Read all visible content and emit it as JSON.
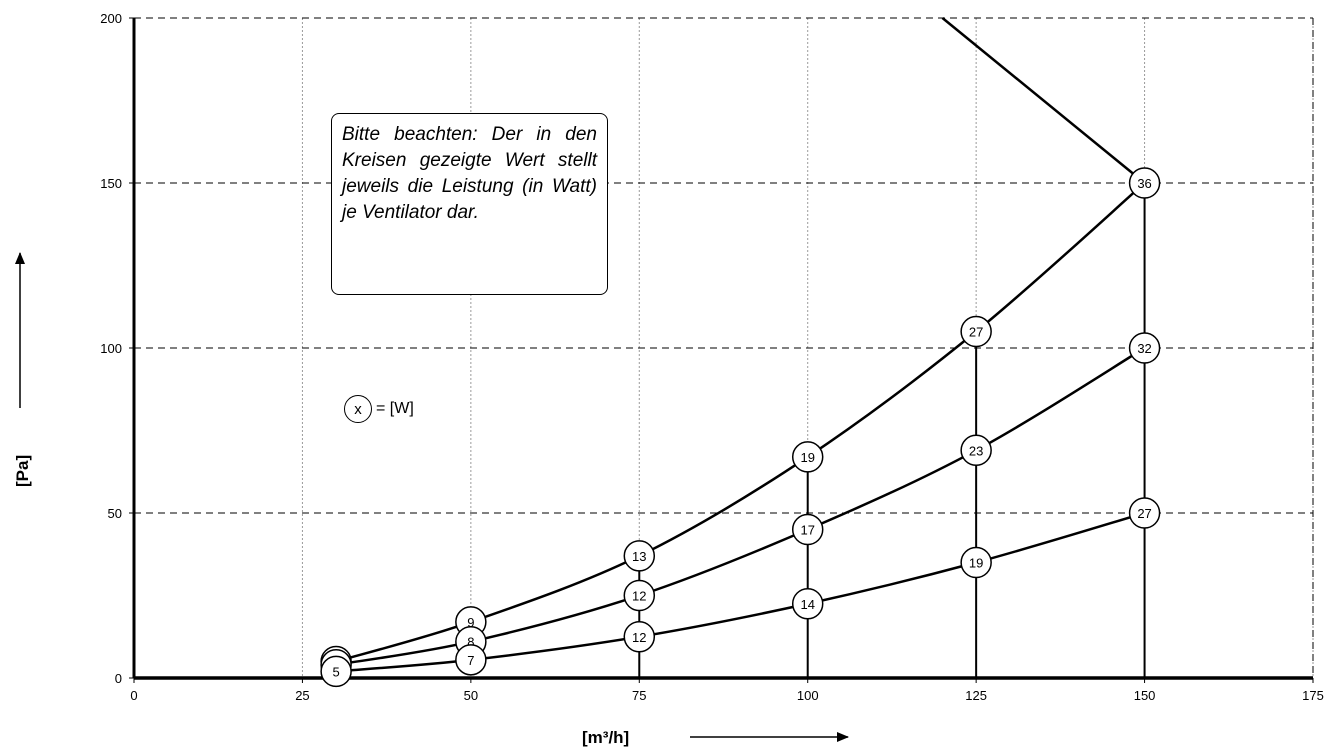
{
  "chart_data": {
    "type": "line",
    "xlabel": "[m³/h]",
    "ylabel": "[Pa]",
    "xlim": [
      0,
      175
    ],
    "ylim": [
      0,
      200
    ],
    "x_ticks": [
      "0",
      "25",
      "50",
      "75",
      "100",
      "125",
      "150",
      "175"
    ],
    "y_ticks": [
      "0",
      "50",
      "100",
      "150",
      "200"
    ],
    "grid": "x dotted vertical, y dashed horizontal",
    "series": [
      {
        "points": [
          [
            30,
            5
          ],
          [
            50,
            17
          ],
          [
            75,
            37
          ],
          [
            100,
            67
          ],
          [
            125,
            105
          ],
          [
            150,
            150
          ]
        ],
        "power": [
          "",
          "9",
          "13",
          "19",
          "27",
          "36"
        ]
      },
      {
        "points": [
          [
            30,
            4
          ],
          [
            50,
            11
          ],
          [
            75,
            25
          ],
          [
            100,
            45
          ],
          [
            125,
            69
          ],
          [
            150,
            100
          ]
        ],
        "power": [
          "",
          "8",
          "12",
          "17",
          "23",
          "32"
        ]
      },
      {
        "points": [
          [
            30,
            2
          ],
          [
            50,
            5.5
          ],
          [
            75,
            12.5
          ],
          [
            100,
            22.5
          ],
          [
            125,
            35
          ],
          [
            150,
            50
          ]
        ],
        "power": [
          "5",
          "7",
          "12",
          "14",
          "19",
          "27"
        ]
      }
    ],
    "limit_line": [
      [
        120,
        200
      ],
      [
        150,
        150
      ]
    ],
    "vertical_lines": [
      [
        75,
        0,
        37
      ],
      [
        100,
        0,
        67
      ],
      [
        125,
        0,
        105
      ],
      [
        150,
        0,
        150
      ]
    ]
  },
  "note": "Bitte beachten: Der in den Kreisen gezeigte Wert stellt jeweils die Leistung (in Watt) je Ventilator dar.",
  "legend": {
    "symbol": "x",
    "text": "= [W]"
  }
}
